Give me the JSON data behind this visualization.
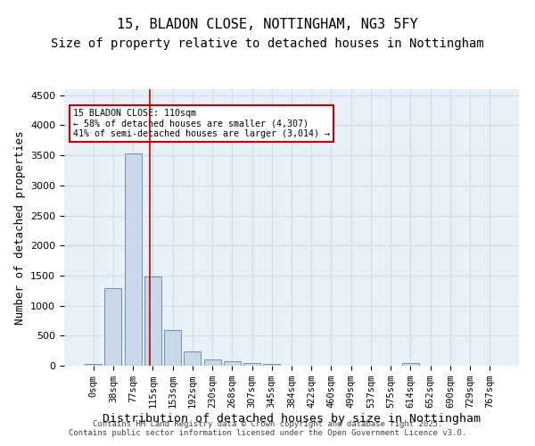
{
  "title_line1": "15, BLADON CLOSE, NOTTINGHAM, NG3 5FY",
  "title_line2": "Size of property relative to detached houses in Nottingham",
  "xlabel": "Distribution of detached houses by size in Nottingham",
  "ylabel": "Number of detached properties",
  "bar_labels": [
    "0sqm",
    "38sqm",
    "77sqm",
    "115sqm",
    "153sqm",
    "192sqm",
    "230sqm",
    "268sqm",
    "307sqm",
    "345sqm",
    "384sqm",
    "422sqm",
    "460sqm",
    "499sqm",
    "537sqm",
    "575sqm",
    "614sqm",
    "652sqm",
    "690sqm",
    "729sqm",
    "767sqm"
  ],
  "bar_values": [
    30,
    1290,
    3530,
    1490,
    590,
    240,
    110,
    75,
    45,
    25,
    0,
    0,
    0,
    0,
    0,
    0,
    40,
    0,
    0,
    0,
    0
  ],
  "bar_color": "#c8d8e8",
  "bar_edge_color": "#5588aa",
  "property_line_x": 2.82,
  "property_sqm": 110,
  "annotation_text": "15 BLADON CLOSE: 110sqm\n← 58% of detached houses are smaller (4,307)\n41% of semi-detached houses are larger (3,014) →",
  "annotation_box_color": "#cc0000",
  "grid_color": "#ccddee",
  "background_color": "#e8f0f8",
  "ylim": [
    0,
    4600
  ],
  "yticks": [
    0,
    500,
    1000,
    1500,
    2000,
    2500,
    3000,
    3500,
    4000,
    4500
  ],
  "footer_text": "Contains HM Land Registry data © Crown copyright and database right 2025.\nContains public sector information licensed under the Open Government Licence v3.0.",
  "title_fontsize": 11,
  "subtitle_fontsize": 10,
  "axis_label_fontsize": 9,
  "tick_fontsize": 7.5
}
